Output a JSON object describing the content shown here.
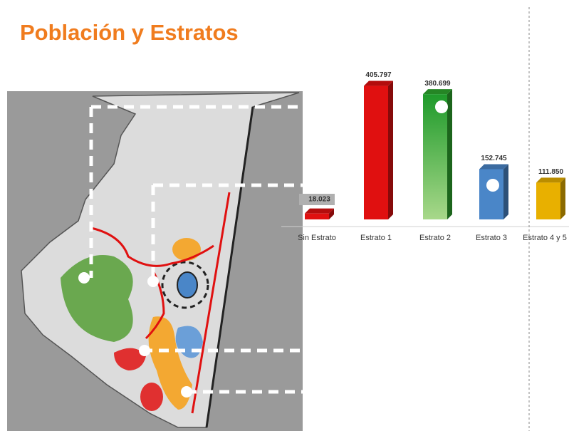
{
  "chart_data": {
    "type": "bar",
    "title": "Población y Estratos",
    "categories": [
      "Sin Estrato",
      "Estrato 1",
      "Estrato 2",
      "Estrato 3",
      "Estrato 4 y 5"
    ],
    "values": [
      18023,
      405797,
      380699,
      152745,
      111850
    ],
    "value_labels": [
      "18.023",
      "405.797",
      "380.699",
      "152.745",
      "111.850"
    ],
    "colors": [
      "#e01010",
      "#e01010",
      "#2ea82e",
      "#4a86c8",
      "#e8b000"
    ],
    "ylim": [
      0,
      420000
    ]
  }
}
